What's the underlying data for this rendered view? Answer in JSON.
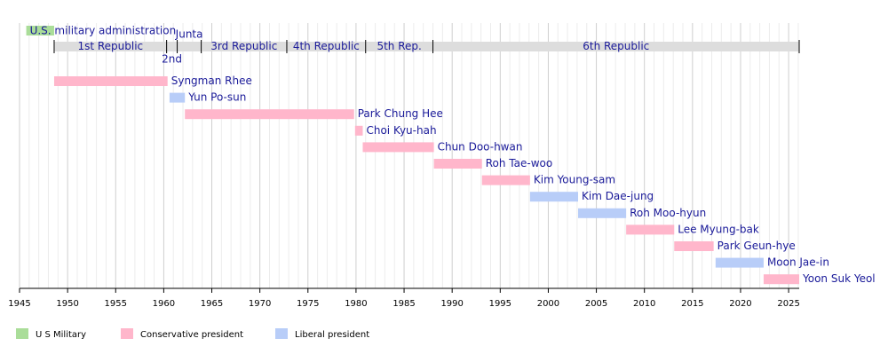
{
  "chart_data": {
    "type": "timeline",
    "xlim": [
      1945,
      2026.1
    ],
    "xticks": [
      1945,
      1950,
      1955,
      1960,
      1965,
      1970,
      1975,
      1980,
      1985,
      1990,
      1995,
      2000,
      2005,
      2010,
      2015,
      2020,
      2025
    ],
    "minor_xticks": [
      1946,
      1947,
      1948,
      1949,
      1951,
      1952,
      1953,
      1954,
      1956,
      1957,
      1958,
      1959,
      1961,
      1962,
      1963,
      1964,
      1966,
      1967,
      1968,
      1969,
      1971,
      1972,
      1973,
      1974,
      1976,
      1977,
      1978,
      1979,
      1981,
      1982,
      1983,
      1984,
      1986,
      1987,
      1988,
      1989,
      1991,
      1992,
      1993,
      1994,
      1996,
      1997,
      1998,
      1999,
      2001,
      2002,
      2003,
      2004,
      2006,
      2007,
      2008,
      2009,
      2011,
      2012,
      2013,
      2014,
      2016,
      2017,
      2018,
      2019,
      2021,
      2022,
      2023,
      2024,
      2026
    ],
    "era_color": "#dddddd",
    "eras": [
      {
        "name": "1st Republic",
        "start": 1948.6,
        "end": 1960.3
      },
      {
        "name": "2nd",
        "start": 1960.3,
        "end": 1961.4
      },
      {
        "name": "Junta",
        "start": 1961.4,
        "end": 1963.9
      },
      {
        "name": "3rd Republic",
        "start": 1963.9,
        "end": 1972.8
      },
      {
        "name": "4th Republic",
        "start": 1972.8,
        "end": 1981.0
      },
      {
        "name": "5th Rep.",
        "start": 1981.0,
        "end": 1988.0
      },
      {
        "name": "6th Republic",
        "start": 1988.0,
        "end": 2026.1
      }
    ],
    "occupation": {
      "name": "U.S. military administration",
      "start": 1945.7,
      "end": 1948.6,
      "color": "#aadd99"
    },
    "bars": [
      {
        "name": "Syngman Rhee",
        "start": 1948.6,
        "end": 1960.4,
        "color": "#ffb6cb"
      },
      {
        "name": "Yun Po-sun",
        "start": 1960.6,
        "end": 1962.2,
        "color": "#b8cdf8"
      },
      {
        "name": "Park Chung Hee",
        "start": 1962.2,
        "end": 1979.8,
        "color": "#ffb6cb"
      },
      {
        "name": "Choi Kyu-hah",
        "start": 1979.9,
        "end": 1980.7,
        "color": "#ffb6cb"
      },
      {
        "name": "Chun Doo-hwan",
        "start": 1980.7,
        "end": 1988.1,
        "color": "#ffb6cb"
      },
      {
        "name": "Roh Tae-woo",
        "start": 1988.1,
        "end": 1993.1,
        "color": "#ffb6cb"
      },
      {
        "name": "Kim Young-sam",
        "start": 1993.1,
        "end": 1998.1,
        "color": "#ffb6cb"
      },
      {
        "name": "Kim Dae-jung",
        "start": 1998.1,
        "end": 2003.1,
        "color": "#b8cdf8"
      },
      {
        "name": "Roh Moo-hyun",
        "start": 2003.1,
        "end": 2008.1,
        "color": "#b8cdf8"
      },
      {
        "name": "Lee Myung-bak",
        "start": 2008.1,
        "end": 2013.1,
        "color": "#ffb6cb"
      },
      {
        "name": "Park Geun-hye",
        "start": 2013.1,
        "end": 2017.2,
        "color": "#ffb6cb"
      },
      {
        "name": "Moon Jae-in",
        "start": 2017.4,
        "end": 2022.4,
        "color": "#b8cdf8"
      },
      {
        "name": "Yoon Suk Yeol",
        "start": 2022.4,
        "end": 2026.1,
        "color": "#ffb6cb"
      }
    ],
    "legend": [
      {
        "name": "U S Military",
        "color": "#aadd99"
      },
      {
        "name": "Conservative president",
        "color": "#ffb6cb"
      },
      {
        "name": "Liberal president",
        "color": "#b8cdf8"
      }
    ]
  }
}
